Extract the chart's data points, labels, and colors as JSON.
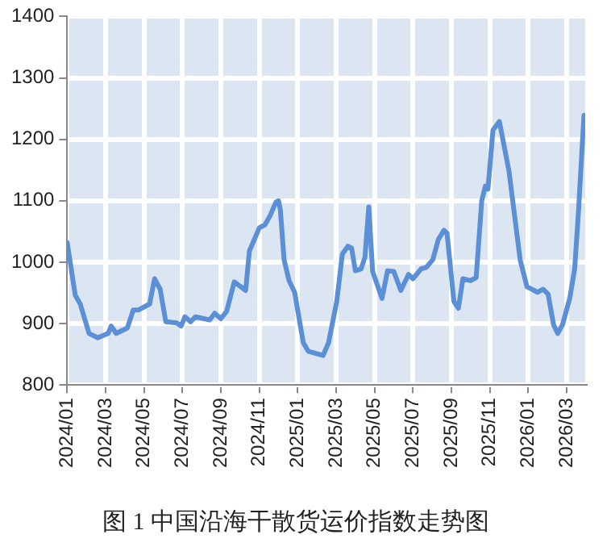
{
  "chart_data": {
    "type": "line",
    "title": "图 1 中国沿海干散货运价指数走势图",
    "x": [
      "2024-01-01",
      "2024-01-14",
      "2024-01-22",
      "2024-02-05",
      "2024-02-18",
      "2024-03-05",
      "2024-03-10",
      "2024-03-18",
      "2024-04-05",
      "2024-04-14",
      "2024-04-22",
      "2024-05-10",
      "2024-05-18",
      "2024-05-27",
      "2024-06-05",
      "2024-06-22",
      "2024-06-29",
      "2024-07-05",
      "2024-07-14",
      "2024-07-22",
      "2024-08-14",
      "2024-08-22",
      "2024-09-01",
      "2024-09-10",
      "2024-09-22",
      "2024-10-10",
      "2024-10-16",
      "2024-11-01",
      "2024-11-10",
      "2024-11-18",
      "2024-11-27",
      "2024-12-01",
      "2024-12-04",
      "2024-12-10",
      "2024-12-18",
      "2024-12-27",
      "2025-01-10",
      "2025-01-18",
      "2025-02-10",
      "2025-02-18",
      "2025-03-02",
      "2025-03-11",
      "2025-03-20",
      "2025-03-26",
      "2025-04-01",
      "2025-04-10",
      "2025-04-16",
      "2025-04-22",
      "2025-04-28",
      "2025-05-13",
      "2025-05-22",
      "2025-06-01",
      "2025-06-12",
      "2025-06-24",
      "2025-07-01",
      "2025-07-14",
      "2025-07-23",
      "2025-08-02",
      "2025-08-11",
      "2025-08-20",
      "2025-08-25",
      "2025-09-05",
      "2025-09-12",
      "2025-09-19",
      "2025-10-01",
      "2025-10-10",
      "2025-10-19",
      "2025-10-25",
      "2025-10-29",
      "2025-11-06",
      "2025-11-16",
      "2025-12-01",
      "2025-12-10",
      "2025-12-19",
      "2025-12-30",
      "2026-01-16",
      "2026-01-25",
      "2026-02-02",
      "2026-02-10",
      "2026-02-16",
      "2026-02-23",
      "2026-03-06",
      "2026-03-14",
      "2026-03-20",
      "2026-03-29"
    ],
    "series": [
      {
        "color": "#5b8fd6",
        "values": [
          1032,
          946,
          932,
          884,
          877,
          884,
          896,
          884,
          893,
          922,
          922,
          932,
          973,
          956,
          903,
          901,
          896,
          911,
          903,
          911,
          906,
          917,
          908,
          920,
          968,
          954,
          1018,
          1056,
          1061,
          1076,
          1098,
          1100,
          1085,
          1004,
          970,
          951,
          869,
          855,
          848,
          869,
          936,
          1013,
          1026,
          1023,
          986,
          989,
          1008,
          1090,
          985,
          941,
          986,
          985,
          954,
          980,
          973,
          989,
          992,
          1004,
          1037,
          1052,
          1047,
          936,
          925,
          973,
          970,
          975,
          1100,
          1124,
          1119,
          1215,
          1229,
          1148,
          1076,
          1004,
          960,
          951,
          956,
          948,
          898,
          884,
          898,
          941,
          989,
          1080,
          1239
        ]
      }
    ],
    "xlim": [
      "2024-01-01",
      "2026-03-31"
    ],
    "xticks": [
      {
        "value": "2024-01",
        "label": "2024/01"
      },
      {
        "value": "2024-03",
        "label": "2024/03"
      },
      {
        "value": "2024-05",
        "label": "2024/05"
      },
      {
        "value": "2024-07",
        "label": "2024/07"
      },
      {
        "value": "2024-09",
        "label": "2024/09"
      },
      {
        "value": "2024-11",
        "label": "2024/11"
      },
      {
        "value": "2025-01",
        "label": "2025/01"
      },
      {
        "value": "2025-03",
        "label": "2025/03"
      },
      {
        "value": "2025-05",
        "label": "2025/05"
      },
      {
        "value": "2025-07",
        "label": "2025/07"
      },
      {
        "value": "2025-09",
        "label": "2025/09"
      },
      {
        "value": "2025-11",
        "label": "2025/11"
      },
      {
        "value": "2026-01",
        "label": "2026/01"
      },
      {
        "value": "2026-03",
        "label": "2026/03"
      }
    ],
    "ylim": [
      800,
      1400
    ],
    "yticks": [
      800,
      900,
      1000,
      1100,
      1200,
      1300,
      1400
    ],
    "grid": true,
    "legend": false,
    "marker": "none",
    "line_style": "solid"
  }
}
